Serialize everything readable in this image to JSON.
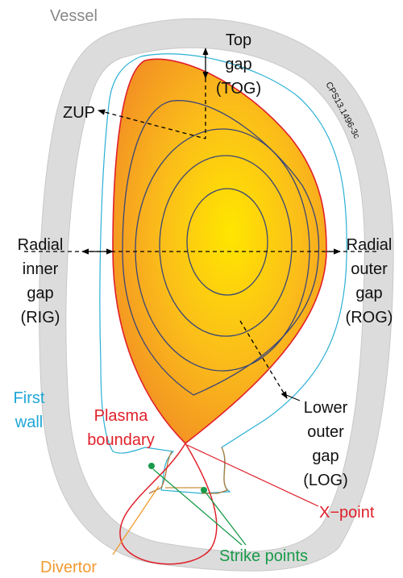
{
  "labels": {
    "vessel": "Vessel",
    "top_gap": [
      "Top",
      "gap",
      "(TOG)"
    ],
    "zup": "ZUP",
    "figure_id": "CPS13.1496-3c",
    "radial_inner_gap": [
      "Radial",
      "inner",
      "gap",
      "(RIG)"
    ],
    "radial_outer_gap": [
      "Radial",
      "outer",
      "gap",
      "(ROG)"
    ],
    "first_wall": [
      "First",
      "wall"
    ],
    "plasma_boundary": [
      "Plasma",
      "boundary"
    ],
    "lower_outer_gap": [
      "Lower",
      "outer",
      "gap",
      "(LOG)"
    ],
    "x_point": "X−point",
    "divertor": "Divertor",
    "strike_points": "Strike points"
  }
}
